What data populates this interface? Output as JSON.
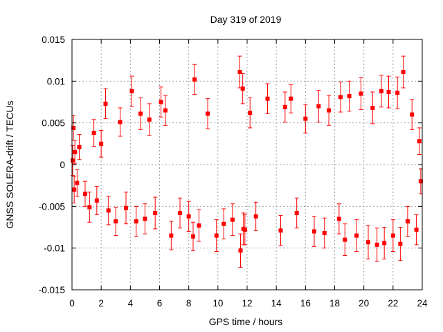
{
  "chart_data": {
    "type": "scatter",
    "title": "Day 319 of 2019",
    "xlabel": "GPS time / hours",
    "ylabel": "GNSS SOLERA-drift / TECUs",
    "xlim": [
      0,
      24
    ],
    "ylim": [
      -0.015,
      0.015
    ],
    "x_ticks": [
      0,
      2,
      4,
      6,
      8,
      10,
      12,
      14,
      16,
      18,
      20,
      22,
      24
    ],
    "y_ticks": [
      -0.015,
      -0.01,
      -0.005,
      0,
      0.005,
      0.01,
      0.015
    ],
    "x_tick_labels": [
      "0",
      "2",
      "4",
      "6",
      "8",
      "10",
      "12",
      "14",
      "16",
      "18",
      "20",
      "22",
      "24"
    ],
    "y_tick_labels": [
      "-0.015",
      "-0.01",
      "-0.005",
      "0",
      "0.005",
      "0.01",
      "0.015"
    ],
    "grid": true,
    "error_bars": true,
    "marker": "square",
    "color": "#ff0000",
    "series": [
      {
        "points": [
          {
            "x": 0.05,
            "y": 0.0005,
            "err": 0.0018
          },
          {
            "x": 0.1,
            "y": 0.0044,
            "err": 0.0015
          },
          {
            "x": 0.15,
            "y": -0.003,
            "err": 0.0016
          },
          {
            "x": 0.2,
            "y": 0.0015,
            "err": 0.0014
          },
          {
            "x": 0.35,
            "y": -0.0022,
            "err": 0.0016
          },
          {
            "x": 0.5,
            "y": 0.0021,
            "err": 0.0015
          },
          {
            "x": 0.9,
            "y": -0.0035,
            "err": 0.0015
          },
          {
            "x": 1.2,
            "y": -0.0051,
            "err": 0.0018
          },
          {
            "x": 1.5,
            "y": 0.0038,
            "err": 0.0016
          },
          {
            "x": 1.7,
            "y": -0.0043,
            "err": 0.0017
          },
          {
            "x": 2.0,
            "y": 0.0025,
            "err": 0.0016
          },
          {
            "x": 2.3,
            "y": 0.0073,
            "err": 0.0018
          },
          {
            "x": 2.5,
            "y": -0.0055,
            "err": 0.0017
          },
          {
            "x": 3.0,
            "y": -0.0068,
            "err": 0.0017
          },
          {
            "x": 3.3,
            "y": 0.0051,
            "err": 0.0017
          },
          {
            "x": 3.7,
            "y": -0.0052,
            "err": 0.0019
          },
          {
            "x": 4.1,
            "y": 0.0088,
            "err": 0.0018
          },
          {
            "x": 4.4,
            "y": -0.0068,
            "err": 0.0018
          },
          {
            "x": 4.7,
            "y": 0.0061,
            "err": 0.0019
          },
          {
            "x": 5.0,
            "y": -0.0065,
            "err": 0.0018
          },
          {
            "x": 5.3,
            "y": 0.0054,
            "err": 0.0019
          },
          {
            "x": 5.7,
            "y": -0.0058,
            "err": 0.0019
          },
          {
            "x": 6.1,
            "y": 0.0075,
            "err": 0.0018
          },
          {
            "x": 6.4,
            "y": 0.0065,
            "err": 0.0018
          },
          {
            "x": 6.8,
            "y": -0.0085,
            "err": 0.0017
          },
          {
            "x": 7.4,
            "y": -0.0058,
            "err": 0.0018
          },
          {
            "x": 8.0,
            "y": -0.0062,
            "err": 0.0018
          },
          {
            "x": 8.3,
            "y": -0.0086,
            "err": 0.0017
          },
          {
            "x": 8.4,
            "y": 0.0102,
            "err": 0.0018
          },
          {
            "x": 8.7,
            "y": -0.0073,
            "err": 0.0019
          },
          {
            "x": 9.3,
            "y": 0.0061,
            "err": 0.0018
          },
          {
            "x": 9.9,
            "y": -0.0085,
            "err": 0.0019
          },
          {
            "x": 10.4,
            "y": -0.0071,
            "err": 0.0018
          },
          {
            "x": 11.0,
            "y": -0.0066,
            "err": 0.0019
          },
          {
            "x": 11.5,
            "y": 0.0111,
            "err": 0.0019
          },
          {
            "x": 11.55,
            "y": -0.0103,
            "err": 0.002
          },
          {
            "x": 11.7,
            "y": 0.0091,
            "err": 0.0018
          },
          {
            "x": 11.75,
            "y": -0.0077,
            "err": 0.0019
          },
          {
            "x": 11.85,
            "y": -0.0078,
            "err": 0.0018
          },
          {
            "x": 12.2,
            "y": 0.0062,
            "err": 0.0018
          },
          {
            "x": 12.6,
            "y": -0.0062,
            "err": 0.0017
          },
          {
            "x": 13.4,
            "y": 0.0079,
            "err": 0.0018
          },
          {
            "x": 14.3,
            "y": -0.0079,
            "err": 0.0018
          },
          {
            "x": 14.6,
            "y": 0.0069,
            "err": 0.0018
          },
          {
            "x": 15.0,
            "y": 0.0079,
            "err": 0.0017
          },
          {
            "x": 15.4,
            "y": -0.0058,
            "err": 0.0018
          },
          {
            "x": 16.0,
            "y": 0.0055,
            "err": 0.0017
          },
          {
            "x": 16.6,
            "y": -0.008,
            "err": 0.0018
          },
          {
            "x": 16.9,
            "y": 0.007,
            "err": 0.0019
          },
          {
            "x": 17.3,
            "y": -0.0082,
            "err": 0.0018
          },
          {
            "x": 17.6,
            "y": 0.0065,
            "err": 0.0018
          },
          {
            "x": 18.3,
            "y": -0.0065,
            "err": 0.0018
          },
          {
            "x": 18.4,
            "y": 0.0081,
            "err": 0.0018
          },
          {
            "x": 18.7,
            "y": -0.009,
            "err": 0.0019
          },
          {
            "x": 19.0,
            "y": 0.0082,
            "err": 0.0018
          },
          {
            "x": 19.5,
            "y": -0.0085,
            "err": 0.0019
          },
          {
            "x": 19.8,
            "y": 0.0085,
            "err": 0.0019
          },
          {
            "x": 20.3,
            "y": -0.0093,
            "err": 0.002
          },
          {
            "x": 20.6,
            "y": 0.0068,
            "err": 0.0019
          },
          {
            "x": 20.9,
            "y": -0.0096,
            "err": 0.002
          },
          {
            "x": 21.2,
            "y": 0.0088,
            "err": 0.0019
          },
          {
            "x": 21.4,
            "y": -0.0094,
            "err": 0.0019
          },
          {
            "x": 21.7,
            "y": 0.0087,
            "err": 0.0019
          },
          {
            "x": 22.0,
            "y": -0.0085,
            "err": 0.0019
          },
          {
            "x": 22.3,
            "y": 0.0086,
            "err": 0.0019
          },
          {
            "x": 22.5,
            "y": -0.0095,
            "err": 0.002
          },
          {
            "x": 22.7,
            "y": 0.0111,
            "err": 0.0019
          },
          {
            "x": 23.0,
            "y": -0.0068,
            "err": 0.0018
          },
          {
            "x": 23.3,
            "y": 0.006,
            "err": 0.0018
          },
          {
            "x": 23.6,
            "y": -0.0078,
            "err": 0.0018
          },
          {
            "x": 23.8,
            "y": 0.0028,
            "err": 0.0016
          },
          {
            "x": 23.9,
            "y": -0.002,
            "err": 0.0015
          }
        ]
      }
    ]
  }
}
